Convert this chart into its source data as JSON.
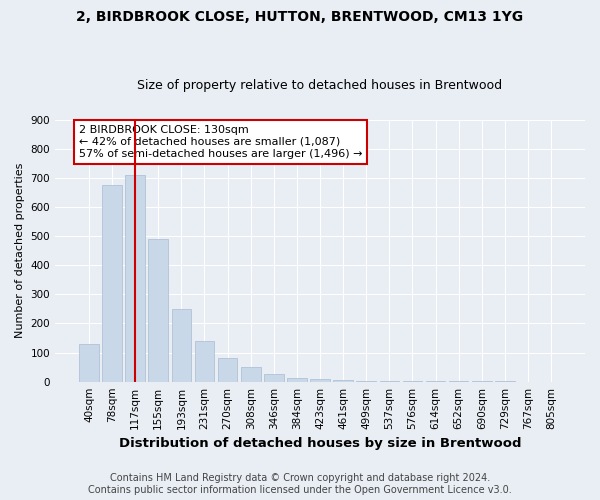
{
  "title": "2, BIRDBROOK CLOSE, HUTTON, BRENTWOOD, CM13 1YG",
  "subtitle": "Size of property relative to detached houses in Brentwood",
  "xlabel": "Distribution of detached houses by size in Brentwood",
  "ylabel": "Number of detached properties",
  "categories": [
    "40sqm",
    "78sqm",
    "117sqm",
    "155sqm",
    "193sqm",
    "231sqm",
    "270sqm",
    "308sqm",
    "346sqm",
    "384sqm",
    "423sqm",
    "461sqm",
    "499sqm",
    "537sqm",
    "576sqm",
    "614sqm",
    "652sqm",
    "690sqm",
    "729sqm",
    "767sqm",
    "805sqm"
  ],
  "values": [
    130,
    675,
    710,
    490,
    248,
    140,
    80,
    50,
    28,
    14,
    8,
    5,
    3,
    2,
    2,
    1,
    1,
    1,
    1,
    0,
    0
  ],
  "bar_color": "#c8d8e8",
  "highlight_bar_index": 2,
  "highlight_line_color": "#cc0000",
  "annotation_text": "2 BIRDBROOK CLOSE: 130sqm\n← 42% of detached houses are smaller (1,087)\n57% of semi-detached houses are larger (1,496) →",
  "annotation_box_color": "#ffffff",
  "annotation_border_color": "#cc0000",
  "footer_line1": "Contains HM Land Registry data © Crown copyright and database right 2024.",
  "footer_line2": "Contains public sector information licensed under the Open Government Licence v3.0.",
  "ylim": [
    0,
    900
  ],
  "yticks": [
    0,
    100,
    200,
    300,
    400,
    500,
    600,
    700,
    800,
    900
  ],
  "background_color": "#e8eef4",
  "plot_background_color": "#e8eef4",
  "grid_color": "#ffffff",
  "title_fontsize": 10,
  "subtitle_fontsize": 9,
  "xlabel_fontsize": 9.5,
  "ylabel_fontsize": 8,
  "tick_fontsize": 7.5,
  "annotation_fontsize": 8,
  "footer_fontsize": 7
}
